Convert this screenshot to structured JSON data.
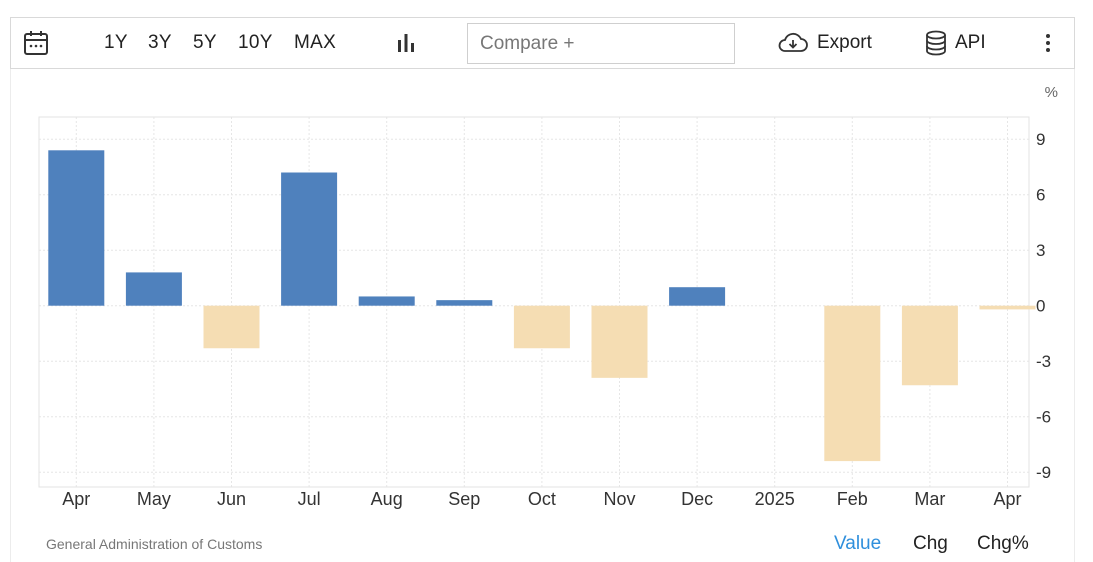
{
  "toolbar": {
    "range_buttons": [
      "1Y",
      "3Y",
      "5Y",
      "10Y",
      "MAX"
    ],
    "compare_placeholder": "Compare +",
    "export_label": "Export",
    "api_label": "API"
  },
  "footer": {
    "source": "General Administration of Customs",
    "view_tabs": [
      "Value",
      "Chg",
      "Chg%"
    ],
    "active_tab": "Value"
  },
  "colors": {
    "positive": "#4f81bd",
    "negative": "#f5ddb3",
    "grid": "#e6e6e6",
    "active_tab": "#2f8fdc"
  },
  "chart_data": {
    "type": "bar",
    "unit": "%",
    "categories": [
      "Apr",
      "May",
      "Jun",
      "Jul",
      "Aug",
      "Sep",
      "Oct",
      "Nov",
      "Dec",
      "2025",
      "Feb",
      "Mar",
      "Apr"
    ],
    "values": [
      8.4,
      1.8,
      -2.3,
      7.2,
      0.5,
      0.3,
      -2.3,
      -3.9,
      1.0,
      null,
      -8.4,
      -4.3,
      -0.2
    ],
    "ylim": [
      -9.8,
      10.2
    ],
    "yticks": [
      9,
      6,
      3,
      0,
      -3,
      -6,
      -9
    ],
    "grid": true,
    "y_axis_position": "right",
    "legend": "none"
  }
}
